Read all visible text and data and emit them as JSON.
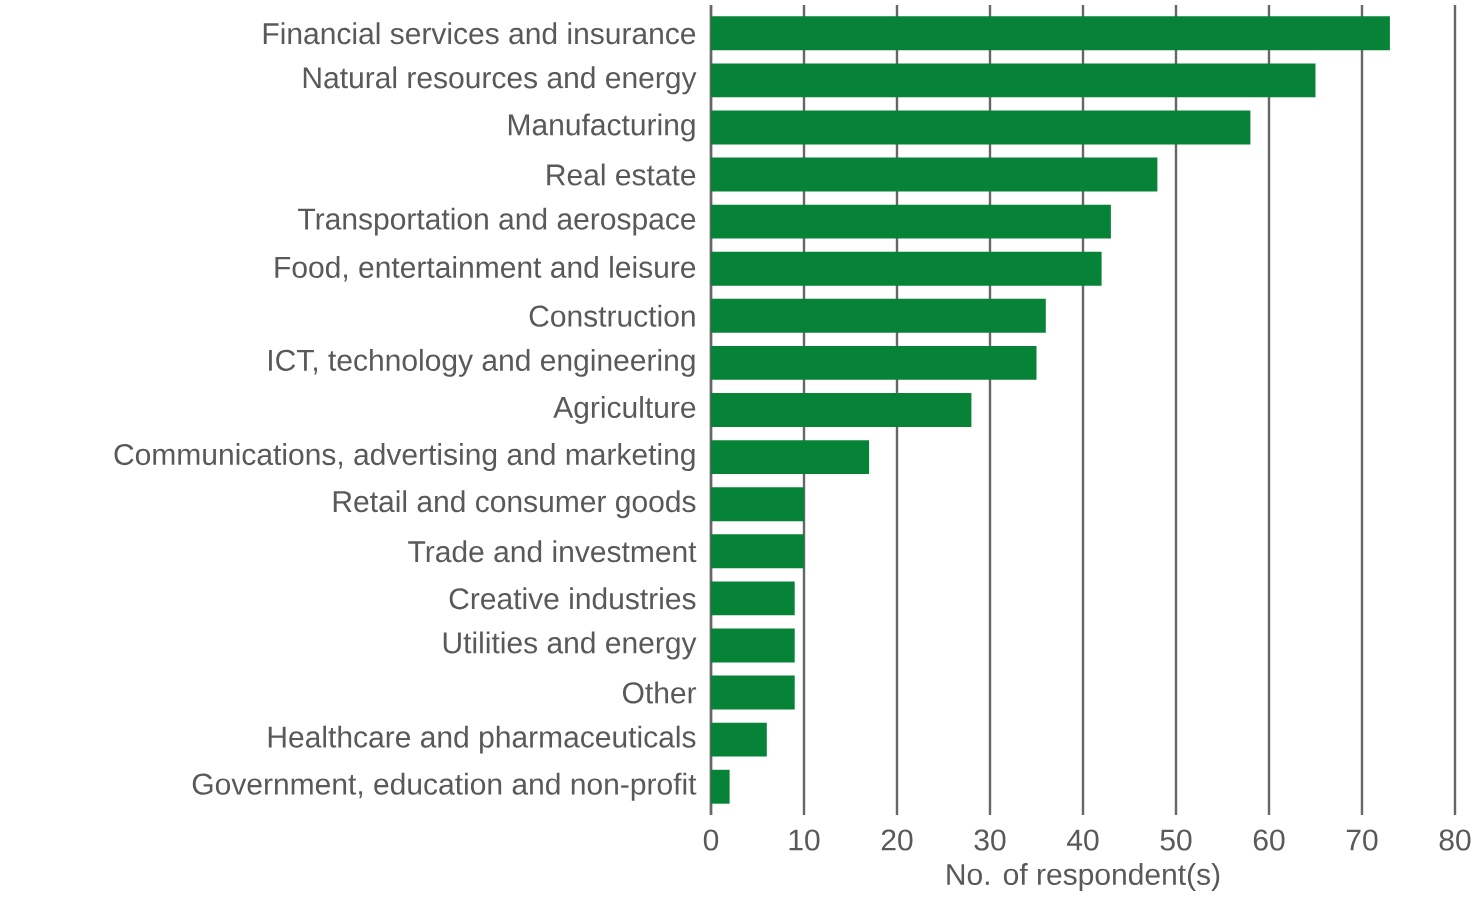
{
  "chart_data": {
    "type": "bar",
    "orientation": "horizontal",
    "xlabel": "No. of respondent(s)",
    "categories": [
      "Financial services and insurance",
      "Natural resources and energy",
      "Manufacturing",
      "Real estate",
      "Transportation and aerospace",
      "Food, entertainment and leisure",
      "Construction",
      "ICT, technology and engineering",
      "Agriculture",
      "Communications, advertising and marketing",
      "Retail and consumer goods",
      "Trade and investment",
      "Creative industries",
      "Utilities and energy",
      "Other",
      "Healthcare and pharmaceuticals",
      "Government, education and non-profit"
    ],
    "values": [
      73,
      65,
      58,
      48,
      43,
      42,
      36,
      35,
      28,
      17,
      10,
      10,
      9,
      9,
      9,
      6,
      2
    ],
    "color": "#078337",
    "xlim": [
      0,
      80
    ],
    "xticks": [
      0,
      10,
      20,
      30,
      40,
      50,
      60,
      70,
      80
    ],
    "grid": "x"
  }
}
